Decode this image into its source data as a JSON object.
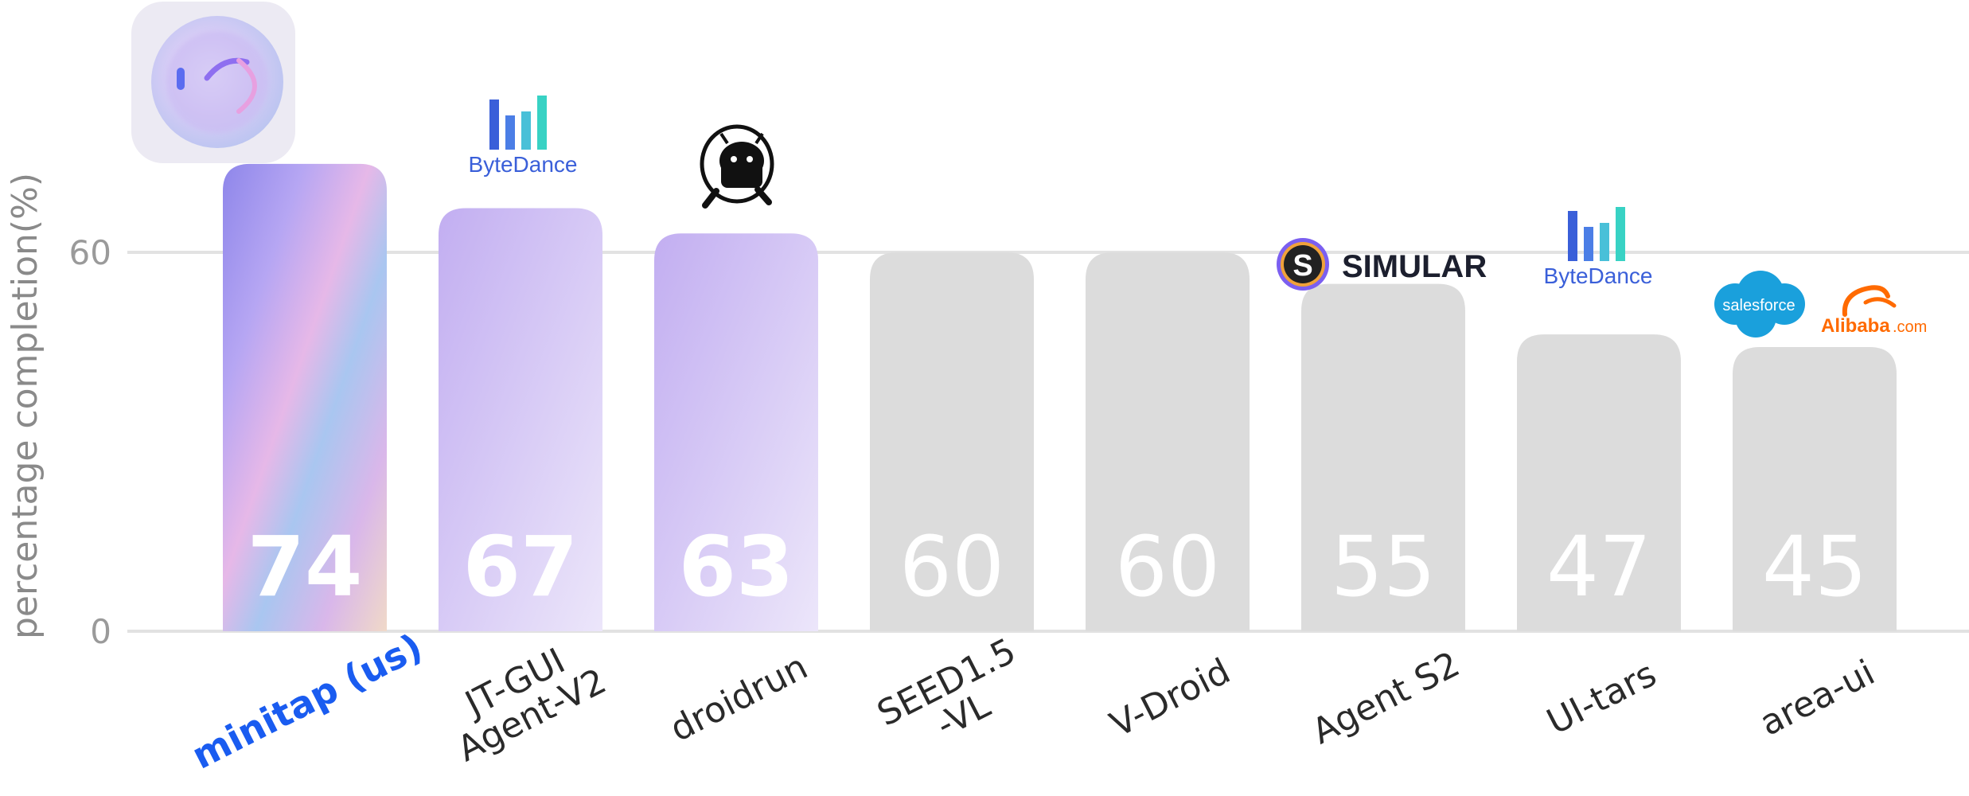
{
  "chart_data": {
    "type": "bar",
    "ylabel": "percentage completion(%)",
    "yticks": [
      "0",
      "60"
    ],
    "ylim": [
      0,
      80
    ],
    "grid": true,
    "categories": [
      "minitap (us)",
      "JT-GUI\nAgent-V2",
      "droidrun",
      "SEED1.5\n-VL",
      "V-Droid",
      "Agent S2",
      "UI-tars",
      "area-ui"
    ],
    "values": [
      74,
      67,
      63,
      60,
      60,
      55,
      47,
      45
    ],
    "value_labels": [
      "74",
      "67",
      "63",
      "60",
      "60",
      "55",
      "47",
      "45"
    ],
    "highlight_index": 0
  },
  "logos": {
    "bytedance_text": "ByteDance",
    "simular_text": "SIMULAR",
    "salesforce_text": "salesforce",
    "alibaba_text": "Alibaba",
    "alibaba_suffix": ".com"
  },
  "colors": {
    "highlight_text": "#1a5cf0",
    "purple_bar": "#c9b6f2",
    "gray_bar": "#dcdcdc",
    "gridline": "#e2e2e2",
    "bytedance_blue": "#3a5fd9",
    "bytedance_teal": "#38d2c4",
    "salesforce_blue": "#1aa0dc",
    "alibaba_orange": "#ff6a00"
  }
}
